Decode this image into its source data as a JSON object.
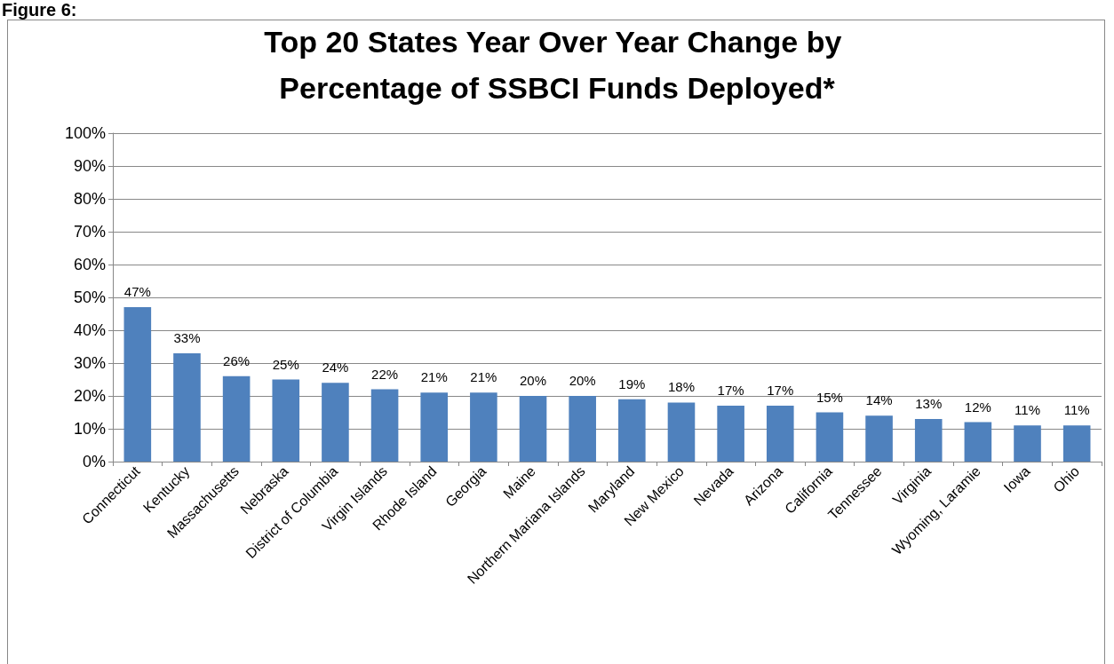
{
  "chart_data": {
    "type": "bar",
    "title": "Top 20 States Year Over Year Change by Percentage of SSBCI Funds Deployed*",
    "annotations": [
      "Figure 6:"
    ],
    "categories": [
      "Connecticut",
      "Kentucky",
      "Massachusetts",
      "Nebraska",
      "District of Columbia",
      "Virgin Islands",
      "Rhode Island",
      "Georgia",
      "Maine",
      "Northern Mariana Islands",
      "Maryland",
      "New Mexico",
      "Nevada",
      "Arizona",
      "California",
      "Tennessee",
      "Virginia",
      "Wyoming, Laramie",
      "Iowa",
      "Ohio"
    ],
    "values": [
      47,
      33,
      26,
      25,
      24,
      22,
      21,
      21,
      20,
      20,
      19,
      18,
      17,
      17,
      15,
      14,
      13,
      12,
      11,
      11
    ],
    "value_labels": [
      "47%",
      "33%",
      "26%",
      "25%",
      "24%",
      "22%",
      "21%",
      "21%",
      "20%",
      "20%",
      "19%",
      "18%",
      "17%",
      "17%",
      "15%",
      "14%",
      "13%",
      "12%",
      "11%",
      "11%"
    ],
    "color": "#4f81bd",
    "ylim": [
      0,
      100
    ],
    "yticks": [
      {
        "value": 0,
        "label": "0%"
      },
      {
        "value": 10,
        "label": "10%"
      },
      {
        "value": 20,
        "label": "20%"
      },
      {
        "value": 30,
        "label": "30%"
      },
      {
        "value": 40,
        "label": "40%"
      },
      {
        "value": 50,
        "label": "50%"
      },
      {
        "value": 60,
        "label": "60%"
      },
      {
        "value": 70,
        "label": "70%"
      },
      {
        "value": 80,
        "label": "80%"
      },
      {
        "value": 90,
        "label": "90%"
      },
      {
        "value": 100,
        "label": "100%"
      }
    ],
    "grid": "y"
  }
}
